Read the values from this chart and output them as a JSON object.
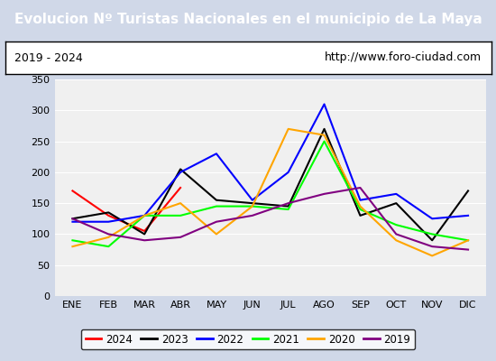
{
  "title": "Evolucion Nº Turistas Nacionales en el municipio de La Maya",
  "subtitle_left": "2019 - 2024",
  "subtitle_right": "http://www.foro-ciudad.com",
  "title_bgcolor": "#4472c4",
  "title_color": "white",
  "months": [
    "ENE",
    "FEB",
    "MAR",
    "ABR",
    "MAY",
    "JUN",
    "JUL",
    "AGO",
    "SEP",
    "OCT",
    "NOV",
    "DIC"
  ],
  "ylim": [
    0,
    350
  ],
  "yticks": [
    0,
    50,
    100,
    150,
    200,
    250,
    300,
    350
  ],
  "series": {
    "2024": {
      "color": "red",
      "data": [
        170,
        130,
        105,
        175,
        null,
        null,
        null,
        null,
        null,
        null,
        null,
        null
      ]
    },
    "2023": {
      "color": "black",
      "data": [
        125,
        135,
        100,
        205,
        155,
        150,
        145,
        270,
        130,
        150,
        90,
        170
      ]
    },
    "2022": {
      "color": "blue",
      "data": [
        120,
        120,
        130,
        200,
        230,
        155,
        200,
        310,
        155,
        165,
        125,
        130
      ]
    },
    "2021": {
      "color": "lime",
      "data": [
        90,
        80,
        130,
        130,
        145,
        145,
        140,
        250,
        140,
        115,
        100,
        90
      ]
    },
    "2020": {
      "color": "orange",
      "data": [
        80,
        95,
        130,
        150,
        100,
        145,
        270,
        260,
        145,
        90,
        65,
        90
      ]
    },
    "2019": {
      "color": "purple",
      "data": [
        125,
        100,
        90,
        95,
        120,
        130,
        150,
        165,
        175,
        100,
        80,
        75
      ]
    }
  },
  "legend_order": [
    "2024",
    "2023",
    "2022",
    "2021",
    "2020",
    "2019"
  ],
  "background_color": "#f0f0f0",
  "outer_background": "#d0d8e8"
}
